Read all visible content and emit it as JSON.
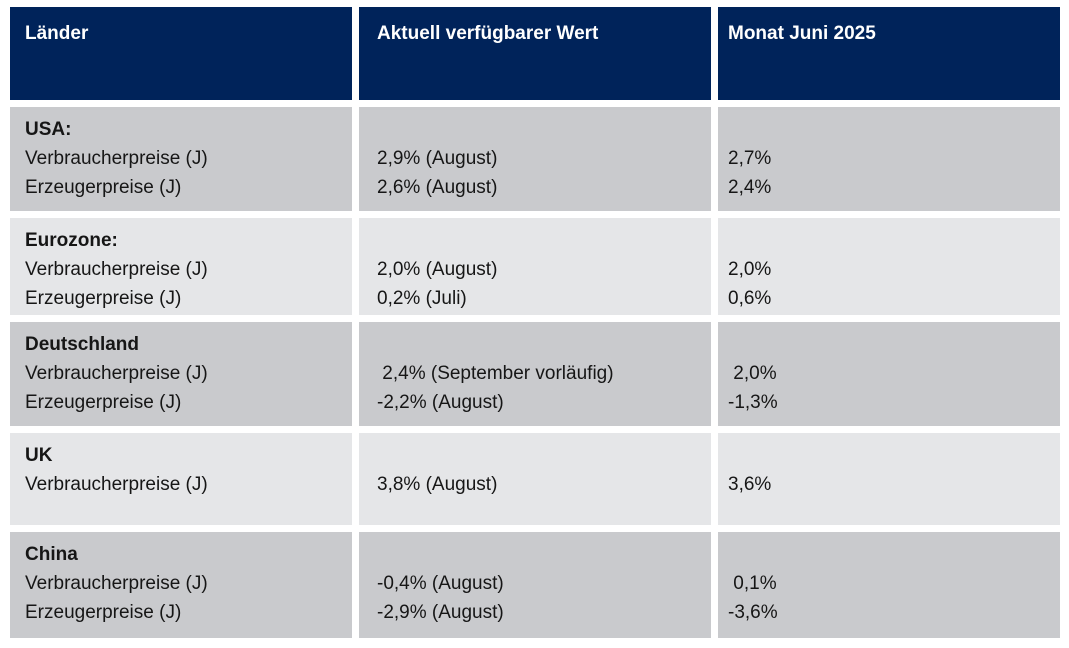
{
  "table": {
    "headers": {
      "col1": "Länder",
      "col2": "Aktuell verfügbarer Wert",
      "col3": "Monat Juni 2025"
    },
    "rows": [
      {
        "col1": [
          "USA:",
          "Verbraucherpreise (J)",
          "Erzeugerpreise (J)"
        ],
        "col2": [
          "2,9% (August)",
          "2,6% (August)"
        ],
        "col3": [
          "2,7%",
          "2,4%"
        ]
      },
      {
        "col1": [
          "Eurozone:",
          "Verbraucherpreise (J)",
          "Erzeugerpreise (J)"
        ],
        "col2": [
          "2,0% (August)",
          "0,2% (Juli)"
        ],
        "col3": [
          "2,0%",
          "0,6%"
        ]
      },
      {
        "col1": [
          "Deutschland",
          "Verbraucherpreise (J)",
          "Erzeugerpreise (J)"
        ],
        "col2": [
          " 2,4% (September vorläufig)",
          "-2,2% (August)"
        ],
        "col3": [
          " 2,0%",
          "-1,3%"
        ]
      },
      {
        "col1": [
          "UK",
          "Verbraucherpreise (J)"
        ],
        "col2": [
          "3,8% (August)"
        ],
        "col3": [
          "3,6%"
        ]
      },
      {
        "col1": [
          "China",
          "Verbraucherpreise (J)",
          "Erzeugerpreise (J)"
        ],
        "col2": [
          "-0,4% (August)",
          "-2,9% (August)"
        ],
        "col3": [
          " 0,1%",
          "-3,6%"
        ]
      }
    ]
  },
  "colors": {
    "header_bg": "#00235a",
    "header_text": "#ffffff",
    "row_dark": "#c9cacd",
    "row_light": "#e5e6e8",
    "body_text": "#161616",
    "page_bg": "#ffffff"
  }
}
